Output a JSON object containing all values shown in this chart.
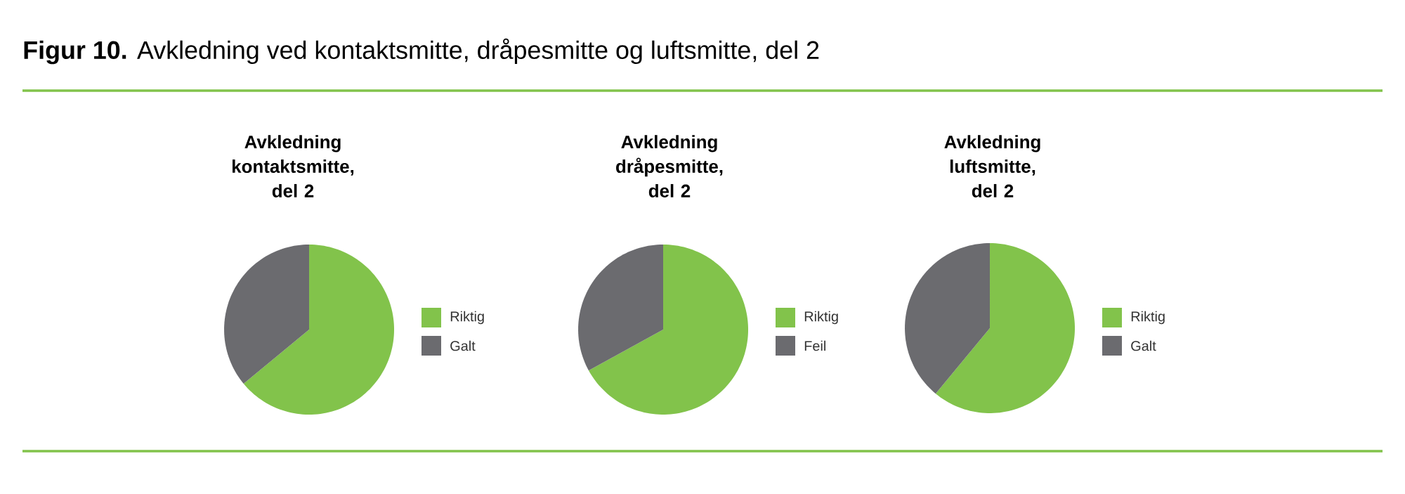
{
  "chart_data": [
    {
      "type": "other",
      "title": "**Figur 10.** Avkledning ved kontaktsmitte, dråpesmitte og luftsmitte, del 2"
    },
    {
      "type": "pie",
      "title": "Avkledning kontaktsmitte, del 2",
      "categories": [
        "Riktig",
        "Galt"
      ],
      "values": [
        64,
        36
      ],
      "colors": [
        "#82c34b",
        "#6b6b6f"
      ],
      "legend": "right"
    },
    {
      "type": "pie",
      "title": "Avkledning dråpesmitte, del 2",
      "categories": [
        "Riktig",
        "Feil"
      ],
      "values": [
        67,
        33
      ],
      "colors": [
        "#82c34b",
        "#6b6b6f"
      ],
      "legend": "right"
    },
    {
      "type": "pie",
      "title": "Avkledning luftsmitte, del 2",
      "categories": [
        "Riktig",
        "Galt"
      ],
      "values": [
        61,
        39
      ],
      "colors": [
        "#82c34b",
        "#6b6b6f"
      ],
      "legend": "right"
    }
  ]
}
